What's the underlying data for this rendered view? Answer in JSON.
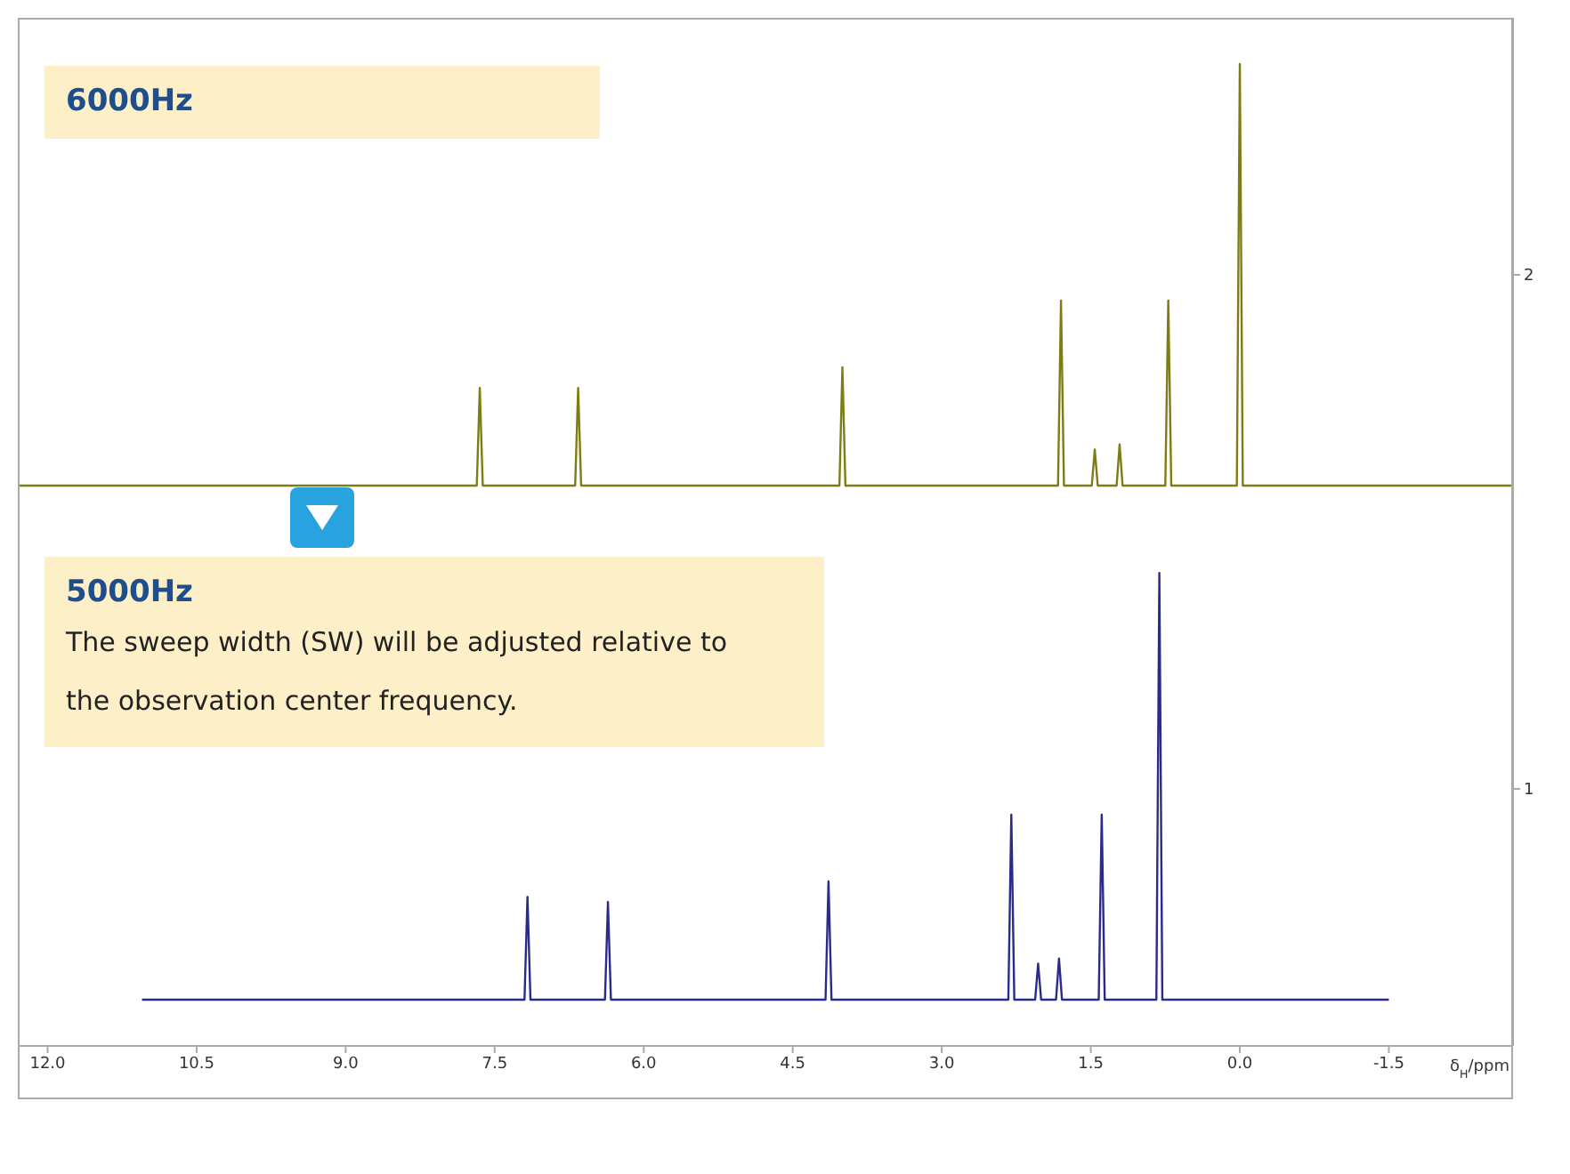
{
  "chart_data": {
    "type": "line",
    "xlabel": "δ$_{H}$/ppm",
    "xlim": [
      12.3,
      -2.75
    ],
    "xticks": [
      {
        "value": 12,
        "label": "12.0"
      },
      10.5,
      {
        "value": 9,
        "label": "9.0"
      },
      7.5,
      {
        "value": 6,
        "label": "6.0"
      },
      4.5,
      {
        "value": 3,
        "label": "3.0"
      },
      1.5,
      {
        "value": 0,
        "label": "0.0"
      },
      -1.5
    ],
    "ylim": [
      0.5,
      2.5
    ],
    "yticks": [
      1,
      2
    ],
    "marker": "none",
    "line_style": "solid",
    "series": [
      {
        "color": "#7d7d14",
        "x": [
          12.3,
          7.68,
          7.65,
          7.62,
          6.69,
          6.66,
          6.63,
          4.03,
          4.0,
          3.97,
          1.83,
          1.8,
          1.77,
          1.49,
          1.46,
          1.43,
          1.24,
          1.21,
          1.18,
          0.75,
          0.72,
          0.69,
          0.03,
          0.0,
          -0.03,
          -2.75
        ],
        "values": [
          1.59,
          1.59,
          1.78,
          1.59,
          1.59,
          1.78,
          1.59,
          1.59,
          1.82,
          1.59,
          1.59,
          1.95,
          1.59,
          1.59,
          1.66,
          1.59,
          1.59,
          1.67,
          1.59,
          1.59,
          1.95,
          1.59,
          1.59,
          2.41,
          1.59,
          1.59
        ]
      },
      {
        "color": "#2b2b8c",
        "x": [
          11.05,
          7.2,
          7.17,
          7.14,
          6.39,
          6.36,
          6.33,
          4.17,
          4.14,
          4.11,
          2.33,
          2.3,
          2.27,
          2.06,
          2.03,
          2.0,
          1.85,
          1.82,
          1.79,
          1.42,
          1.39,
          1.36,
          0.84,
          0.81,
          0.78,
          -1.5
        ],
        "values": [
          0.59,
          0.59,
          0.79,
          0.59,
          0.59,
          0.78,
          0.59,
          0.59,
          0.82,
          0.59,
          0.59,
          0.95,
          0.59,
          0.59,
          0.66,
          0.59,
          0.59,
          0.67,
          0.59,
          0.59,
          0.95,
          0.59,
          0.59,
          1.42,
          0.59,
          0.59
        ]
      }
    ],
    "annotations": [
      "6000Hz",
      "5000Hz",
      "The sweep width (SW) will be adjusted relative to the observation center frequency."
    ]
  }
}
